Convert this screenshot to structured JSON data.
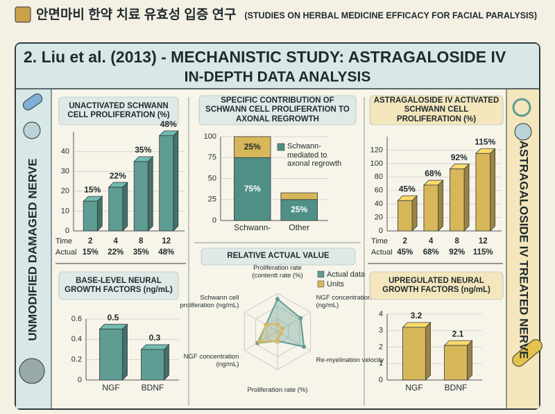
{
  "header": {
    "title_ko": "안면마비 한약 치료 유효성 입증 연구",
    "title_en": "(STUDIES ON HERBAL MEDICINE EFFICACY FOR FACIAL PARALYSIS)"
  },
  "panel": {
    "title": "2. Liu et al. (2013) - MECHANISTIC STUDY: ASTRAGALOSIDE IV",
    "subtitle": "IN-DEPTH DATA ANALYSIS"
  },
  "side_labels": {
    "left": "UNMODIFIED DAMAGED NERVE",
    "right": "ASTRAGALOSIDE IV TREATED NERVE"
  },
  "chart_data": [
    {
      "type": "bar",
      "title": "UNACTIVATED SCHWANN CELL PROLIFERATION (%)",
      "x_label": "Time",
      "value_row_label": "Actual",
      "categories": [
        "2",
        "4",
        "8",
        "12"
      ],
      "values": [
        15,
        22,
        35,
        48
      ],
      "value_labels": [
        "15%",
        "22%",
        "35%",
        "48%"
      ],
      "color": "#5f9c93",
      "ylim": [
        0,
        50
      ],
      "yticks": [
        0,
        10,
        20,
        30,
        40
      ],
      "grid": true
    },
    {
      "type": "stacked",
      "title": "SPECIFIC CONTRIBUTION OF SCHWANN CELL PROLIFERATION TO AXONAL REGROWTH",
      "categories": [
        "Schwann-",
        "Other"
      ],
      "series": [
        {
          "name": "Schwann-mediated to axonal regrowth",
          "color": "#4f8f86",
          "values": [
            75,
            25
          ],
          "value_labels": [
            "75%",
            "25%"
          ]
        },
        {
          "color": "#d8b65a",
          "values": [
            25,
            8
          ],
          "value_labels": [
            "25%",
            null
          ]
        }
      ],
      "ylim": [
        0,
        100
      ],
      "yticks": [
        0,
        25,
        50,
        75,
        100
      ],
      "legend": "upper right",
      "grid": true
    },
    {
      "type": "bar",
      "title": "ASTRAGALOSIDE IV ACTIVATED SCHWANN CELL PROLIFERATION (%)",
      "x_label": "Time",
      "value_row_label": "Actual",
      "categories": [
        "2",
        "4",
        "8",
        "12"
      ],
      "values": [
        45,
        68,
        92,
        115
      ],
      "value_labels": [
        "45%",
        "68%",
        "92%",
        "115%"
      ],
      "color": "#d8b65a",
      "ylim": [
        0,
        140
      ],
      "yticks": [
        0,
        20,
        40,
        60,
        80,
        100,
        120
      ],
      "grid": true
    },
    {
      "type": "bar",
      "title": "BASE-LEVEL NEURAL GROWTH FACTORS (ng/mL)",
      "categories": [
        "NGF",
        "BDNF"
      ],
      "values": [
        0.5,
        0.3
      ],
      "color": "#5f9c93",
      "ylim": [
        0,
        0.6
      ],
      "yticks": [
        0,
        0.2,
        0.4,
        0.6
      ],
      "grid": true
    },
    {
      "type": "radar",
      "title": "RELATIVE ACTUAL VALUE",
      "categories": [
        "Proliferation rate (contentt rate (%)",
        "NGF concentration (ng/mL)",
        "Re-myelination velocity",
        "Proliferation rate (%)",
        "NGF concentration (ng/mL)",
        "Schwann cell proliferation (ng/mL)"
      ],
      "series": [
        {
          "name": "Actual data",
          "color": "#5f9c93",
          "values": [
            85,
            70,
            80,
            25,
            60,
            35
          ]
        },
        {
          "name": "Units",
          "color": "#d8b65a",
          "values": [
            20,
            15,
            10,
            25,
            55,
            35
          ]
        }
      ],
      "rlim": [
        0,
        100
      ]
    },
    {
      "type": "bar",
      "title": "UPREGULATED NEURAL GROWTH FACTORS (ng/mL)",
      "categories": [
        "NGF",
        "BDNF"
      ],
      "values": [
        3.2,
        2.1
      ],
      "color": "#d8b65a",
      "ylim": [
        0,
        4
      ],
      "yticks": [
        0,
        1,
        2,
        3,
        4
      ],
      "grid": true
    }
  ]
}
